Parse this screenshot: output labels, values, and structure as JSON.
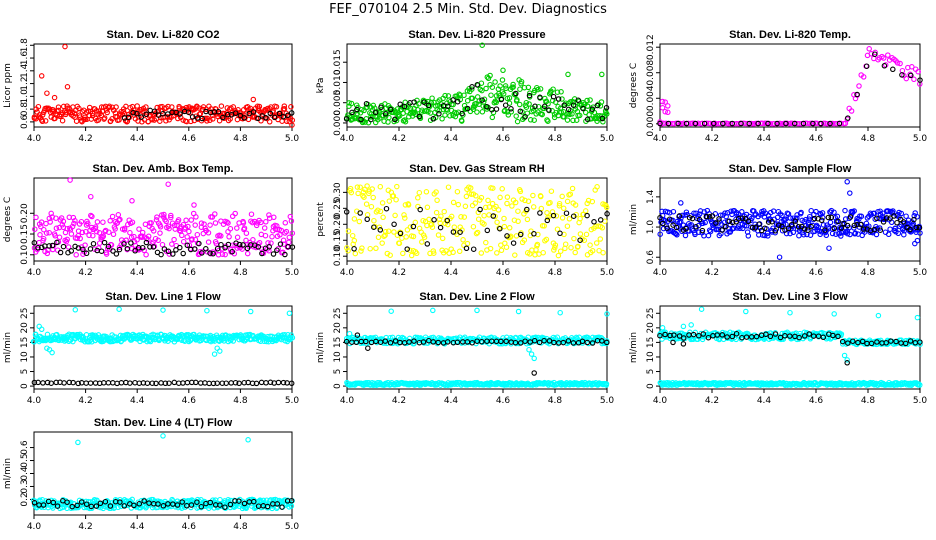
{
  "title": "FEF_070104  2.5 Min. Std. Dev. Diagnostics",
  "colors": {
    "red": "#ff0000",
    "green": "#00cc00",
    "magenta": "#ff00ff",
    "yellow": "#ffff00",
    "blue": "#0000ff",
    "cyan": "#00ffff",
    "black": "#000000"
  },
  "chart_data": [
    {
      "type": "scatter",
      "title": "Stan. Dev. Li-820 CO2",
      "ylabel": "Licor ppm",
      "xlim": [
        4.0,
        5.0
      ],
      "ylim": [
        0.52,
        1.82
      ],
      "xticks": [
        "4.0",
        "4.2",
        "4.4",
        "4.6",
        "4.8",
        "5.0"
      ],
      "yticks": [
        {
          "v": 0.6,
          "t": "0.6"
        },
        {
          "v": 0.8,
          "t": "0.8"
        },
        {
          "v": 1.0,
          "t": "1.0"
        },
        {
          "v": 1.2,
          "t": "1.2"
        },
        {
          "v": 1.4,
          "t": "1.4"
        },
        {
          "v": 1.6,
          "t": "1.6"
        },
        {
          "v": 1.8,
          "t": "1.8"
        }
      ],
      "series": [
        {
          "name": "all",
          "color": "red",
          "gen": {
            "seed": 11,
            "n": 320,
            "kind": "band",
            "lo": 0.6,
            "hi": 0.85
          },
          "extra": [
            [
              4.03,
              1.32
            ],
            [
              4.05,
              1.05
            ],
            [
              4.12,
              1.78
            ],
            [
              4.13,
              1.15
            ],
            [
              4.08,
              0.98
            ],
            [
              5.0,
              0.55
            ],
            [
              4.85,
              0.95
            ]
          ]
        },
        {
          "name": "sel",
          "color": "black",
          "gen": {
            "seed": 12,
            "n": 40,
            "kind": "band",
            "lo": 0.65,
            "hi": 0.78,
            "x0": 4.35
          }
        }
      ]
    },
    {
      "type": "scatter",
      "title": "Stan. Dev. Li-820 Pressure",
      "ylabel": "kPa",
      "xlim": [
        4.0,
        5.0
      ],
      "ylim": [
        -0.001,
        0.0195
      ],
      "xticks": [
        "4.0",
        "4.2",
        "4.4",
        "4.6",
        "4.8",
        "5.0"
      ],
      "yticks": [
        {
          "v": 0.0,
          "t": "0.000"
        },
        {
          "v": 0.005,
          "t": "0.005"
        },
        {
          "v": 0.01,
          "t": "0.010"
        },
        {
          "v": 0.015,
          "t": "0.015"
        }
      ],
      "series": [
        {
          "name": "all",
          "color": "green",
          "gen": {
            "seed": 21,
            "n": 360,
            "kind": "hump",
            "lo": 0.0,
            "hi": 0.009,
            "bump": 0.004
          },
          "extra": [
            [
              4.52,
              0.0192
            ],
            [
              4.85,
              0.012
            ],
            [
              4.6,
              0.013
            ],
            [
              4.98,
              0.012
            ]
          ]
        },
        {
          "name": "sel",
          "color": "black",
          "gen": {
            "seed": 22,
            "n": 55,
            "kind": "hump",
            "lo": 0.0008,
            "hi": 0.008,
            "bump": 0.003
          }
        }
      ]
    },
    {
      "type": "scatter",
      "title": "Stan. Dev. Li-820 Temp.",
      "ylabel": "degrees C",
      "xlim": [
        4.0,
        5.0
      ],
      "ylim": [
        -0.0005,
        0.0125
      ],
      "xticks": [
        "4.0",
        "4.2",
        "4.4",
        "4.6",
        "4.8",
        "5.0"
      ],
      "yticks": [
        {
          "v": 0.0,
          "t": "0.000"
        },
        {
          "v": 0.004,
          "t": "0.004"
        },
        {
          "v": 0.008,
          "t": "0.008"
        },
        {
          "v": 0.012,
          "t": "0.012"
        }
      ],
      "series": [
        {
          "name": "all",
          "color": "magenta",
          "gen": {
            "seed": 31,
            "n": 130,
            "kind": "temp"
          },
          "extra": [
            [
              4.01,
              0.0035
            ],
            [
              4.02,
              0.0034
            ],
            [
              4.03,
              0.0028
            ],
            [
              4.01,
              0.0025
            ],
            [
              4.02,
              0.0019
            ],
            [
              4.03,
              0.0018
            ],
            [
              4.0,
              0.0003
            ]
          ]
        },
        {
          "name": "sel",
          "color": "black",
          "gen": {
            "seed": 32,
            "n": 30,
            "kind": "tempsel"
          }
        }
      ]
    },
    {
      "type": "scatter",
      "title": "Stan. Dev. Amb. Box Temp.",
      "ylabel": "degrees C",
      "xlim": [
        4.0,
        5.0
      ],
      "ylim": [
        0.085,
        0.285
      ],
      "xticks": [
        "4.0",
        "4.2",
        "4.4",
        "4.6",
        "4.8",
        "5.0"
      ],
      "yticks": [
        {
          "v": 0.1,
          "t": "0.10"
        },
        {
          "v": 0.15,
          "t": "0.15"
        },
        {
          "v": 0.2,
          "t": "0.20"
        }
      ],
      "series": [
        {
          "name": "all",
          "color": "magenta",
          "gen": {
            "seed": 41,
            "n": 330,
            "kind": "band",
            "lo": 0.1,
            "hi": 0.2
          },
          "extra": [
            [
              4.14,
              0.28
            ],
            [
              4.52,
              0.27
            ],
            [
              4.22,
              0.24
            ],
            [
              4.38,
              0.23
            ],
            [
              4.62,
              0.22
            ]
          ]
        },
        {
          "name": "sel",
          "color": "black",
          "gen": {
            "seed": 42,
            "n": 70,
            "kind": "band",
            "lo": 0.1,
            "hi": 0.13
          }
        }
      ]
    },
    {
      "type": "scatter",
      "title": "Stan. Dev. Gas Stream RH",
      "ylabel": "percent",
      "xlim": [
        4.0,
        5.0
      ],
      "ylim": [
        0.085,
        0.345
      ],
      "xticks": [
        "4.0",
        "4.2",
        "4.4",
        "4.6",
        "4.8",
        "5.0"
      ],
      "yticks": [
        {
          "v": 0.1,
          "t": "0.10"
        },
        {
          "v": 0.15,
          "t": "0.15"
        },
        {
          "v": 0.2,
          "t": "0.20"
        },
        {
          "v": 0.25,
          "t": "0.25"
        },
        {
          "v": 0.3,
          "t": "0.30"
        }
      ],
      "series": [
        {
          "name": "all",
          "color": "yellow",
          "gen": {
            "seed": 51,
            "n": 300,
            "kind": "band",
            "lo": 0.1,
            "hi": 0.32
          }
        },
        {
          "name": "sel",
          "color": "black",
          "gen": {
            "seed": 52,
            "n": 40,
            "kind": "band",
            "lo": 0.12,
            "hi": 0.25
          }
        }
      ]
    },
    {
      "type": "scatter",
      "title": "Stan. Dev. Sample Flow",
      "ylabel": "ml/min",
      "xlim": [
        4.0,
        5.0
      ],
      "ylim": [
        0.55,
        1.65
      ],
      "xticks": [
        "4.0",
        "4.2",
        "4.4",
        "4.6",
        "4.8",
        "5.0"
      ],
      "yticks": [
        {
          "v": 0.6,
          "t": "0.6"
        },
        {
          "v": 1.0,
          "t": "1.0"
        },
        {
          "v": 1.4,
          "t": "1.4"
        }
      ],
      "series": [
        {
          "name": "all",
          "color": "blue",
          "gen": {
            "seed": 61,
            "n": 380,
            "kind": "band",
            "lo": 0.88,
            "hi": 1.22
          },
          "extra": [
            [
              4.72,
              1.6
            ],
            [
              4.73,
              1.45
            ],
            [
              4.65,
              0.72
            ],
            [
              4.46,
              0.6
            ],
            [
              4.08,
              1.32
            ],
            [
              4.98,
              0.78
            ],
            [
              4.99,
              0.82
            ]
          ]
        },
        {
          "name": "sel",
          "color": "black",
          "gen": {
            "seed": 62,
            "n": 80,
            "kind": "band",
            "lo": 0.95,
            "hi": 1.15
          }
        }
      ]
    },
    {
      "type": "scatter",
      "title": "Stan. Dev. Line 1 Flow",
      "ylabel": "ml/min",
      "xlim": [
        4.0,
        5.0
      ],
      "ylim": [
        -1,
        27.5
      ],
      "xticks": [
        "4.0",
        "4.2",
        "4.4",
        "4.6",
        "4.8",
        "5.0"
      ],
      "yticks": [
        {
          "v": 0,
          "t": "0"
        },
        {
          "v": 5,
          "t": "5"
        },
        {
          "v": 10,
          "t": "10"
        },
        {
          "v": 15,
          "t": "15"
        },
        {
          "v": 20,
          "t": "20"
        },
        {
          "v": 25,
          "t": "25"
        }
      ],
      "series": [
        {
          "name": "all",
          "color": "cyan",
          "gen": {
            "seed": 71,
            "n": 360,
            "kind": "band",
            "lo": 15.2,
            "hi": 17.8
          },
          "extra": [
            [
              4.16,
              26.2
            ],
            [
              4.33,
              26.4
            ],
            [
              4.5,
              26.1
            ],
            [
              4.67,
              25.9
            ],
            [
              4.84,
              25.6
            ],
            [
              4.99,
              25.0
            ],
            [
              4.02,
              20.5
            ],
            [
              4.03,
              19.5
            ],
            [
              4.05,
              13.0
            ],
            [
              4.06,
              12.5
            ],
            [
              4.07,
              11.5
            ],
            [
              4.71,
              13.0
            ],
            [
              4.7,
              11.0
            ],
            [
              4.72,
              12.0
            ]
          ]
        },
        {
          "name": "sel",
          "color": "black",
          "gen": {
            "seed": 72,
            "n": 60,
            "kind": "line",
            "lo": 0.9,
            "hi": 1.3
          }
        }
      ]
    },
    {
      "type": "scatter",
      "title": "Stan. Dev. Line 2 Flow",
      "ylabel": "ml/min",
      "xlim": [
        4.0,
        5.0
      ],
      "ylim": [
        -1,
        27.5
      ],
      "xticks": [
        "4.0",
        "4.2",
        "4.4",
        "4.6",
        "4.8",
        "5.0"
      ],
      "yticks": [
        {
          "v": 0,
          "t": "0"
        },
        {
          "v": 5,
          "t": "5"
        },
        {
          "v": 10,
          "t": "10"
        },
        {
          "v": 15,
          "t": "15"
        },
        {
          "v": 20,
          "t": "20"
        },
        {
          "v": 25,
          "t": "25"
        }
      ],
      "series": [
        {
          "name": "low",
          "color": "cyan",
          "gen": {
            "seed": 81,
            "n": 300,
            "kind": "band",
            "lo": 0.3,
            "hi": 1.2
          }
        },
        {
          "name": "all",
          "color": "cyan",
          "gen": {
            "seed": 82,
            "n": 300,
            "kind": "band",
            "lo": 14.5,
            "hi": 16.8
          },
          "extra": [
            [
              4.17,
              25.7
            ],
            [
              4.33,
              26.0
            ],
            [
              4.5,
              26.0
            ],
            [
              4.66,
              25.6
            ],
            [
              4.82,
              25.2
            ],
            [
              5.0,
              24.8
            ],
            [
              4.01,
              18.0
            ],
            [
              4.7,
              12.5
            ],
            [
              4.71,
              11.0
            ],
            [
              4.72,
              9.5
            ]
          ]
        },
        {
          "name": "sel",
          "color": "black",
          "gen": {
            "seed": 83,
            "n": 55,
            "kind": "line",
            "lo": 14.8,
            "hi": 15.6
          },
          "extra": [
            [
              4.72,
              4.5
            ],
            [
              4.04,
              17.5
            ],
            [
              4.08,
              13.0
            ]
          ]
        }
      ]
    },
    {
      "type": "scatter",
      "title": "Stan. Dev. Line 3 Flow",
      "ylabel": "ml/min",
      "xlim": [
        4.0,
        5.0
      ],
      "ylim": [
        -1,
        27.5
      ],
      "xticks": [
        "4.0",
        "4.2",
        "4.4",
        "4.6",
        "4.8",
        "5.0"
      ],
      "yticks": [
        {
          "v": 0,
          "t": "0"
        },
        {
          "v": 5,
          "t": "5"
        },
        {
          "v": 10,
          "t": "10"
        },
        {
          "v": 15,
          "t": "15"
        },
        {
          "v": 20,
          "t": "20"
        },
        {
          "v": 25,
          "t": "25"
        }
      ],
      "series": [
        {
          "name": "low",
          "color": "cyan",
          "gen": {
            "seed": 91,
            "n": 300,
            "kind": "band",
            "lo": 0.3,
            "hi": 1.2
          }
        },
        {
          "name": "all",
          "color": "cyan",
          "gen": {
            "seed": 92,
            "n": 300,
            "kind": "step",
            "lo": 16.0,
            "hi": 18.5,
            "lo2": 14.3,
            "hi2": 15.8,
            "split": 4.7
          },
          "extra": [
            [
              4.16,
              26.4
            ],
            [
              4.33,
              25.6
            ],
            [
              4.5,
              25.2
            ],
            [
              4.67,
              24.8
            ],
            [
              4.84,
              24.2
            ],
            [
              4.99,
              23.5
            ],
            [
              4.01,
              20.0
            ],
            [
              4.02,
              18.5
            ],
            [
              4.71,
              10.5
            ],
            [
              4.72,
              9.0
            ],
            [
              4.09,
              20.5
            ],
            [
              4.12,
              21.0
            ]
          ]
        },
        {
          "name": "sel",
          "color": "black",
          "gen": {
            "seed": 93,
            "n": 55,
            "kind": "step",
            "lo": 16.5,
            "hi": 18.0,
            "lo2": 14.5,
            "hi2": 15.5,
            "split": 4.7
          },
          "extra": [
            [
              4.72,
              8.0
            ],
            [
              4.05,
              15.0
            ],
            [
              4.09,
              14.5
            ]
          ]
        }
      ]
    },
    {
      "type": "scatter",
      "title": "Stan. Dev. Line 4 (LT) Flow",
      "ylabel": "ml/min",
      "xlim": [
        4.0,
        5.0
      ],
      "ylim": [
        0.08,
        0.72
      ],
      "xticks": [
        "4.0",
        "4.2",
        "4.4",
        "4.6",
        "4.8",
        "5.0"
      ],
      "yticks": [
        {
          "v": 0.2,
          "t": "0.2"
        },
        {
          "v": 0.3,
          "t": "0.3"
        },
        {
          "v": 0.4,
          "t": "0.4"
        },
        {
          "v": 0.5,
          "t": "0.5"
        },
        {
          "v": 0.6,
          "t": "0.6"
        }
      ],
      "series": [
        {
          "name": "all",
          "color": "cyan",
          "gen": {
            "seed": 101,
            "n": 360,
            "kind": "band",
            "lo": 0.13,
            "hi": 0.2
          },
          "extra": [
            [
              4.5,
              0.69
            ],
            [
              4.83,
              0.66
            ],
            [
              4.17,
              0.64
            ]
          ]
        },
        {
          "name": "sel",
          "color": "black",
          "gen": {
            "seed": 102,
            "n": 55,
            "kind": "band",
            "lo": 0.14,
            "hi": 0.19
          }
        }
      ]
    }
  ]
}
